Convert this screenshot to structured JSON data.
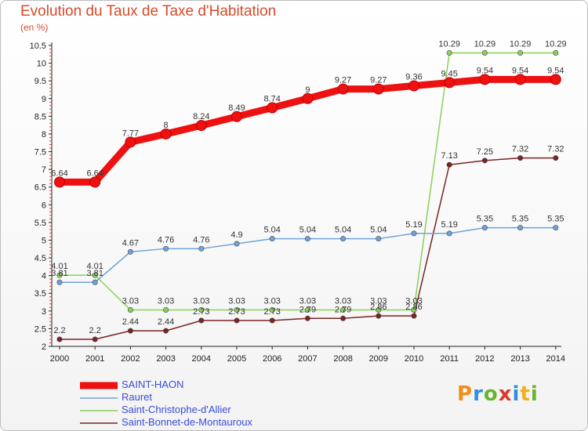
{
  "title": "Evolution du Taux de Taxe d'Habitation",
  "subtitle": "(en %)",
  "logo": "Proxiti",
  "chart_data": {
    "type": "line",
    "title": "Evolution du Taux de Taxe d'Habitation",
    "ylabel": "(en %)",
    "x": [
      2000,
      2001,
      2002,
      2003,
      2004,
      2005,
      2006,
      2007,
      2008,
      2009,
      2010,
      2011,
      2012,
      2013,
      2014
    ],
    "ylim": [
      2,
      10.5
    ],
    "yticks": [
      2,
      2.5,
      3,
      3.5,
      4,
      4.5,
      5,
      5.5,
      6,
      6.5,
      7,
      7.5,
      8,
      8.5,
      9,
      9.5,
      10,
      10.5
    ],
    "series": [
      {
        "name": "SAINT-HAON",
        "color": "#ee1111",
        "values": [
          6.64,
          6.64,
          7.77,
          8,
          8.24,
          8.49,
          8.74,
          9,
          9.27,
          9.27,
          9.36,
          9.45,
          9.54,
          9.54,
          9.54
        ]
      },
      {
        "name": "Rauret",
        "color": "#6fa3d8",
        "values": [
          3.81,
          3.81,
          4.67,
          4.76,
          4.76,
          4.9,
          5.04,
          5.04,
          5.04,
          5.04,
          5.19,
          5.19,
          5.35,
          5.35,
          5.35
        ]
      },
      {
        "name": "Saint-Christophe-d'Allier",
        "color": "#8ccf5a",
        "values": [
          4.01,
          4.01,
          3.03,
          3.03,
          3.03,
          3.03,
          3.03,
          3.03,
          3.03,
          3.03,
          3.03,
          10.29,
          10.29,
          10.29,
          10.29
        ]
      },
      {
        "name": "Saint-Bonnet-de-Montauroux",
        "color": "#7a2424",
        "values": [
          2.2,
          2.2,
          2.44,
          2.44,
          2.73,
          2.73,
          2.73,
          2.79,
          2.79,
          2.86,
          2.86,
          7.13,
          7.25,
          7.32,
          7.32
        ]
      }
    ],
    "legend": "bottom-left",
    "grid": false
  }
}
